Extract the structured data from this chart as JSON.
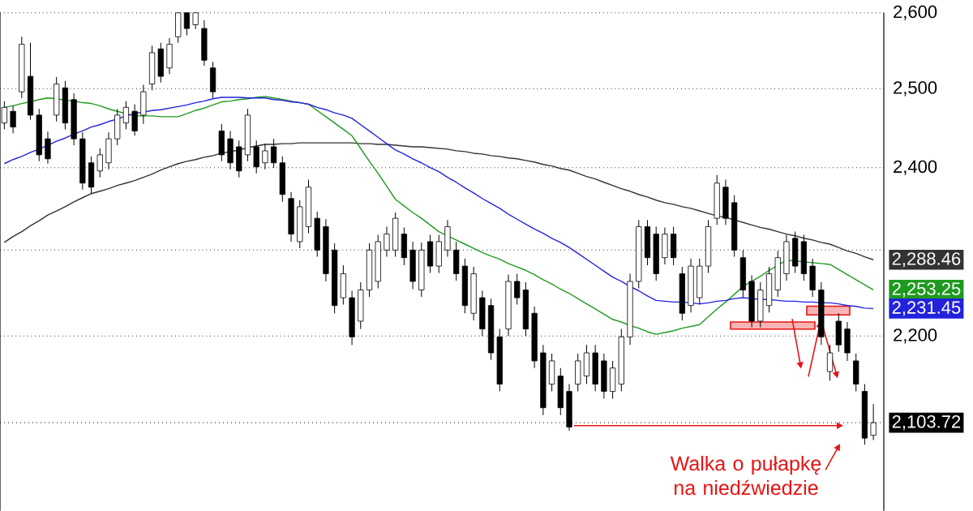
{
  "chart_data": {
    "type": "candlestick",
    "categories": [
      null,
      null,
      null,
      null,
      null,
      null,
      null,
      null,
      null,
      null,
      null,
      null,
      null,
      null,
      null,
      null,
      null,
      null,
      null,
      null,
      null,
      null,
      null,
      null,
      null,
      null,
      null,
      null,
      null,
      null,
      null,
      null,
      null,
      null,
      null,
      null,
      null,
      null,
      null,
      null,
      null,
      null,
      null,
      null,
      null,
      null,
      null,
      null,
      null,
      null,
      null,
      null,
      null,
      null,
      null,
      null,
      null,
      null,
      null,
      null,
      null,
      null,
      null,
      null,
      null,
      null,
      null,
      null,
      null,
      null,
      null,
      null,
      null,
      null,
      null,
      null,
      null,
      null,
      null,
      null,
      null,
      null,
      null,
      null,
      null,
      null,
      null,
      null,
      null,
      null,
      null,
      null,
      null,
      null,
      null,
      null,
      null,
      null,
      null,
      null,
      null
    ],
    "ohlc": [
      [
        2456,
        2484,
        2448,
        2476
      ],
      [
        2471,
        2478,
        2443,
        2451
      ],
      [
        2496,
        2568,
        2488,
        2558
      ],
      [
        2516,
        2560,
        2460,
        2466
      ],
      [
        2466,
        2474,
        2408,
        2416
      ],
      [
        2436,
        2445,
        2405,
        2411
      ],
      [
        2466,
        2515,
        2458,
        2506
      ],
      [
        2501,
        2510,
        2448,
        2456
      ],
      [
        2486,
        2494,
        2428,
        2436
      ],
      [
        2436,
        2444,
        2373,
        2381
      ],
      [
        2406,
        2414,
        2368,
        2376
      ],
      [
        2396,
        2424,
        2388,
        2416
      ],
      [
        2406,
        2444,
        2398,
        2436
      ],
      [
        2436,
        2474,
        2428,
        2466
      ],
      [
        2456,
        2484,
        2448,
        2476
      ],
      [
        2471,
        2480,
        2440,
        2446
      ],
      [
        2466,
        2505,
        2455,
        2496
      ],
      [
        2506,
        2556,
        2498,
        2547
      ],
      [
        2552,
        2560,
        2508,
        2516
      ],
      [
        2527,
        2566,
        2519,
        2558
      ],
      [
        2568,
        2600,
        2560,
        2600
      ],
      [
        2600,
        2600,
        2570,
        2579
      ],
      [
        2584,
        2600,
        2578,
        2600
      ],
      [
        2579,
        2590,
        2530,
        2537
      ],
      [
        2527,
        2535,
        2488,
        2496
      ],
      [
        2446,
        2455,
        2408,
        2416
      ],
      [
        2436,
        2446,
        2398,
        2406
      ],
      [
        2426,
        2434,
        2388,
        2396
      ],
      [
        2416,
        2474,
        2408,
        2466
      ],
      [
        2426,
        2434,
        2393,
        2401
      ],
      [
        2406,
        2430,
        2398,
        2421
      ],
      [
        2426,
        2436,
        2400,
        2406
      ],
      [
        2406,
        2414,
        2358,
        2367
      ],
      [
        2362,
        2370,
        2310,
        2319
      ],
      [
        2310,
        2360,
        2302,
        2352
      ],
      [
        2328,
        2385,
        2320,
        2376
      ],
      [
        2338,
        2346,
        2292,
        2300
      ],
      [
        2328,
        2337,
        2263,
        2272
      ],
      [
        2300,
        2308,
        2226,
        2235
      ],
      [
        2244,
        2282,
        2236,
        2272
      ],
      [
        2244,
        2252,
        2190,
        2199
      ],
      [
        2217,
        2262,
        2208,
        2253
      ],
      [
        2253,
        2308,
        2245,
        2300
      ],
      [
        2263,
        2318,
        2255,
        2310
      ],
      [
        2300,
        2328,
        2292,
        2319
      ],
      [
        2300,
        2345,
        2292,
        2338
      ],
      [
        2319,
        2327,
        2282,
        2291
      ],
      [
        2300,
        2310,
        2254,
        2263
      ],
      [
        2253,
        2309,
        2245,
        2300
      ],
      [
        2310,
        2318,
        2273,
        2281
      ],
      [
        2281,
        2318,
        2273,
        2310
      ],
      [
        2300,
        2336,
        2292,
        2328
      ],
      [
        2300,
        2310,
        2264,
        2272
      ],
      [
        2281,
        2290,
        2226,
        2235
      ],
      [
        2226,
        2280,
        2218,
        2272
      ],
      [
        2244,
        2252,
        2200,
        2208
      ],
      [
        2235,
        2243,
        2173,
        2181
      ],
      [
        2199,
        2208,
        2138,
        2146
      ],
      [
        2208,
        2271,
        2200,
        2263
      ],
      [
        2263,
        2272,
        2236,
        2244
      ],
      [
        2253,
        2262,
        2200,
        2208
      ],
      [
        2226,
        2234,
        2164,
        2172
      ],
      [
        2181,
        2190,
        2112,
        2120
      ],
      [
        2146,
        2180,
        2138,
        2172
      ],
      [
        2155,
        2164,
        2112,
        2120
      ],
      [
        2138,
        2146,
        2095,
        2099
      ],
      [
        2146,
        2180,
        2138,
        2172
      ],
      [
        2155,
        2190,
        2146,
        2181
      ],
      [
        2181,
        2190,
        2138,
        2146
      ],
      [
        2172,
        2180,
        2130,
        2138
      ],
      [
        2138,
        2172,
        2130,
        2164
      ],
      [
        2146,
        2208,
        2138,
        2199
      ],
      [
        2199,
        2272,
        2190,
        2263
      ],
      [
        2263,
        2336,
        2255,
        2328
      ],
      [
        2328,
        2336,
        2282,
        2291
      ],
      [
        2319,
        2328,
        2264,
        2272
      ],
      [
        2291,
        2327,
        2283,
        2319
      ],
      [
        2319,
        2328,
        2282,
        2291
      ],
      [
        2272,
        2280,
        2218,
        2226
      ],
      [
        2235,
        2290,
        2227,
        2281
      ],
      [
        2244,
        2290,
        2236,
        2281
      ],
      [
        2281,
        2336,
        2273,
        2328
      ],
      [
        2338,
        2391,
        2330,
        2381
      ],
      [
        2376,
        2385,
        2330,
        2338
      ],
      [
        2357,
        2366,
        2292,
        2300
      ],
      [
        2291,
        2300,
        2245,
        2253
      ],
      [
        2263,
        2270,
        2210,
        2217
      ],
      [
        2217,
        2262,
        2210,
        2253
      ],
      [
        2235,
        2280,
        2227,
        2272
      ],
      [
        2253,
        2299,
        2245,
        2291
      ],
      [
        2272,
        2318,
        2264,
        2310
      ],
      [
        2314,
        2322,
        2273,
        2281
      ],
      [
        2310,
        2318,
        2264,
        2272
      ],
      [
        2281,
        2290,
        2245,
        2253
      ],
      [
        2253,
        2262,
        2190,
        2199
      ],
      [
        2160,
        2190,
        2150,
        2181
      ],
      [
        2217,
        2226,
        2182,
        2190
      ],
      [
        2208,
        2216,
        2172,
        2181
      ],
      [
        2172,
        2180,
        2138,
        2146
      ],
      [
        2138,
        2146,
        2080,
        2087
      ],
      [
        2090,
        2124,
        2085,
        2103.72
      ]
    ],
    "series": [
      {
        "type": "line",
        "color": "#333333",
        "values": [
          2309,
          2316,
          2322,
          2329,
          2335,
          2342,
          2347,
          2352,
          2358,
          2363,
          2368,
          2371,
          2374,
          2378,
          2381,
          2384,
          2388,
          2392,
          2397,
          2401,
          2405,
          2408,
          2410,
          2413,
          2415,
          2418,
          2420,
          2422,
          2425,
          2427,
          2429,
          2429,
          2430,
          2430,
          2431,
          2431,
          2431,
          2431,
          2431,
          2431,
          2431,
          2430,
          2430,
          2429,
          2429,
          2428,
          2427,
          2426,
          2426,
          2425,
          2424,
          2423,
          2421,
          2420,
          2418,
          2417,
          2415,
          2414,
          2412,
          2411,
          2409,
          2407,
          2404,
          2402,
          2399,
          2397,
          2393,
          2389,
          2386,
          2382,
          2378,
          2374,
          2371,
          2367,
          2364,
          2360,
          2357,
          2355,
          2352,
          2350,
          2347,
          2344,
          2341,
          2339,
          2336,
          2333,
          2330,
          2327,
          2325,
          2322,
          2319,
          2317,
          2314,
          2312,
          2309,
          2307,
          2303,
          2299,
          2296,
          2292,
          2288.46
        ],
        "value_labels": [
          null,
          null,
          null,
          null,
          null,
          null,
          null,
          null,
          null,
          null,
          null,
          null,
          null,
          null,
          null,
          null,
          null,
          null,
          null,
          null,
          null,
          null,
          null,
          null,
          null,
          null,
          null,
          null,
          null,
          null,
          null,
          null,
          null,
          null,
          null,
          null,
          null,
          null,
          null,
          null,
          null,
          null,
          null,
          null,
          null,
          null,
          null,
          null,
          null,
          null,
          null,
          null,
          null,
          null,
          null,
          null,
          null,
          null,
          null,
          null,
          null,
          null,
          null,
          null,
          null,
          null,
          null,
          null,
          null,
          null,
          null,
          null,
          null,
          null,
          null,
          null,
          null,
          null,
          null,
          null,
          null,
          null,
          null,
          null,
          null,
          null,
          null,
          null,
          null,
          null,
          null,
          null,
          null,
          null,
          null,
          null,
          null,
          null,
          null,
          null,
          "2,288.46"
        ]
      },
      {
        "type": "line",
        "color": "#1f9a1f",
        "values": [
          2476,
          2478,
          2481,
          2483,
          2486,
          2488,
          2487,
          2485,
          2484,
          2482,
          2481,
          2478,
          2474,
          2471,
          2468,
          2465,
          2465,
          2465,
          2464,
          2464,
          2464,
          2468,
          2472,
          2475,
          2479,
          2483,
          2484,
          2486,
          2487,
          2489,
          2490,
          2488,
          2486,
          2484,
          2482,
          2480,
          2472,
          2464,
          2456,
          2448,
          2440,
          2424,
          2408,
          2393,
          2377,
          2361,
          2353,
          2345,
          2338,
          2330,
          2322,
          2317,
          2312,
          2307,
          2302,
          2297,
          2293,
          2289,
          2284,
          2280,
          2276,
          2271,
          2265,
          2260,
          2254,
          2249,
          2243,
          2237,
          2231,
          2225,
          2219,
          2216,
          2212,
          2209,
          2205,
          2202,
          2204,
          2206,
          2209,
          2211,
          2213,
          2222,
          2231,
          2239,
          2248,
          2257,
          2263,
          2269,
          2276,
          2282,
          2288,
          2287,
          2286,
          2285,
          2284,
          2283,
          2277,
          2271,
          2265,
          2259,
          2253.25
        ],
        "value_labels": [
          null,
          null,
          null,
          null,
          null,
          null,
          null,
          null,
          null,
          null,
          null,
          null,
          null,
          null,
          null,
          null,
          null,
          null,
          null,
          null,
          null,
          null,
          null,
          null,
          null,
          null,
          null,
          null,
          null,
          null,
          null,
          null,
          null,
          null,
          null,
          null,
          null,
          null,
          null,
          null,
          null,
          null,
          null,
          null,
          null,
          null,
          null,
          null,
          null,
          null,
          null,
          null,
          null,
          null,
          null,
          null,
          null,
          null,
          null,
          null,
          null,
          null,
          null,
          null,
          null,
          null,
          null,
          null,
          null,
          null,
          null,
          null,
          null,
          null,
          null,
          null,
          null,
          null,
          null,
          null,
          null,
          null,
          null,
          null,
          null,
          null,
          null,
          null,
          null,
          null,
          null,
          null,
          null,
          null,
          null,
          null,
          null,
          null,
          null,
          null,
          "2,253.25"
        ]
      },
      {
        "type": "line",
        "color": "#2222dd",
        "values": [
          2405,
          2410,
          2414,
          2419,
          2423,
          2428,
          2433,
          2437,
          2442,
          2446,
          2451,
          2454,
          2458,
          2461,
          2465,
          2468,
          2470,
          2472,
          2473,
          2475,
          2477,
          2479,
          2482,
          2484,
          2487,
          2489,
          2489,
          2489,
          2488,
          2488,
          2488,
          2486,
          2485,
          2483,
          2482,
          2480,
          2476,
          2473,
          2469,
          2466,
          2462,
          2454,
          2446,
          2438,
          2430,
          2422,
          2417,
          2411,
          2406,
          2400,
          2395,
          2388,
          2382,
          2375,
          2369,
          2362,
          2356,
          2350,
          2343,
          2337,
          2331,
          2325,
          2320,
          2314,
          2309,
          2303,
          2296,
          2289,
          2282,
          2275,
          2268,
          2263,
          2257,
          2252,
          2246,
          2241,
          2240,
          2239,
          2239,
          2238,
          2237,
          2238,
          2240,
          2241,
          2243,
          2244,
          2243,
          2242,
          2242,
          2241,
          2240,
          2240,
          2239,
          2239,
          2238,
          2238,
          2237,
          2235,
          2234,
          2232,
          2231.45
        ],
        "value_labels": [
          null,
          null,
          null,
          null,
          null,
          null,
          null,
          null,
          null,
          null,
          null,
          null,
          null,
          null,
          null,
          null,
          null,
          null,
          null,
          null,
          null,
          null,
          null,
          null,
          null,
          null,
          null,
          null,
          null,
          null,
          null,
          null,
          null,
          null,
          null,
          null,
          null,
          null,
          null,
          null,
          null,
          null,
          null,
          null,
          null,
          null,
          null,
          null,
          null,
          null,
          null,
          null,
          null,
          null,
          null,
          null,
          null,
          null,
          null,
          null,
          null,
          null,
          null,
          null,
          null,
          null,
          null,
          null,
          null,
          null,
          null,
          null,
          null,
          null,
          null,
          null,
          null,
          null,
          null,
          null,
          null,
          null,
          null,
          null,
          null,
          null,
          null,
          null,
          null,
          null,
          null,
          null,
          null,
          null,
          null,
          null,
          null,
          null,
          null,
          null,
          "2,231.45"
        ]
      }
    ],
    "ylim": [
      2010,
      2600
    ],
    "yticks": [
      {
        "value": 2200,
        "label": "2,200"
      },
      {
        "value": 2300,
        "label": null
      },
      {
        "value": 2400,
        "label": "2,400"
      },
      {
        "value": 2500,
        "label": "2,500"
      },
      {
        "value": 2600,
        "label": "2,600"
      }
    ],
    "log": true,
    "grid": "y",
    "tick_labels": "y",
    "ref_lines": [
      {
        "axis": "y",
        "value": 2103.72,
        "label": "2,103.72",
        "color": "#000000",
        "line_style": "dotted"
      }
    ],
    "annotations": [
      "Walka o pułapkę na niedźwiedzie"
    ]
  }
}
